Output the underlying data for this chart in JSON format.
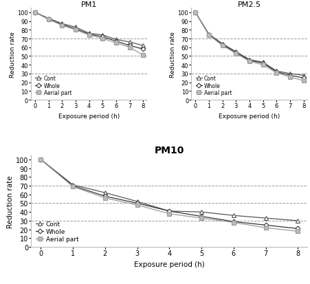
{
  "pm1": {
    "title": "PM1",
    "x": [
      0,
      1,
      2,
      3,
      4,
      5,
      6,
      7,
      8
    ],
    "cont": [
      100,
      93,
      87,
      83,
      76,
      74,
      69,
      66,
      62
    ],
    "whole": [
      100,
      92,
      86,
      81,
      75,
      72,
      67,
      62,
      58
    ],
    "aerial": [
      100,
      92,
      85,
      80,
      74,
      70,
      65,
      60,
      51
    ]
  },
  "pm25": {
    "title": "PM2.5",
    "x": [
      0,
      1,
      2,
      3,
      4,
      5,
      6,
      7,
      8
    ],
    "cont": [
      100,
      75,
      64,
      55,
      46,
      43,
      33,
      30,
      28
    ],
    "whole": [
      100,
      74,
      63,
      54,
      45,
      42,
      32,
      28,
      25
    ],
    "aerial": [
      100,
      74,
      62,
      53,
      44,
      40,
      31,
      26,
      22
    ]
  },
  "pm10": {
    "title": "PM10",
    "x": [
      0,
      1,
      2,
      3,
      4,
      5,
      6,
      7,
      8
    ],
    "cont": [
      100,
      71,
      62,
      52,
      41,
      40,
      36,
      33,
      30
    ],
    "whole": [
      100,
      70,
      58,
      50,
      41,
      35,
      29,
      25,
      21
    ],
    "aerial": [
      100,
      69,
      56,
      48,
      38,
      33,
      28,
      22,
      18
    ]
  },
  "hlines": [
    30,
    50,
    70
  ],
  "ylim": [
    0,
    105
  ],
  "yticks": [
    0,
    10,
    20,
    30,
    40,
    50,
    60,
    70,
    80,
    90,
    100
  ],
  "xlabel": "Exposure period (h)",
  "ylabel": "Reduction rate",
  "cont_color": "#555555",
  "whole_color": "#333333",
  "aerial_color": "#999999",
  "hline_style": "--",
  "hline_color": "#999999",
  "legend_labels": [
    "Cont",
    "Whole",
    "Aerial part"
  ],
  "bg_color": "#ffffff"
}
